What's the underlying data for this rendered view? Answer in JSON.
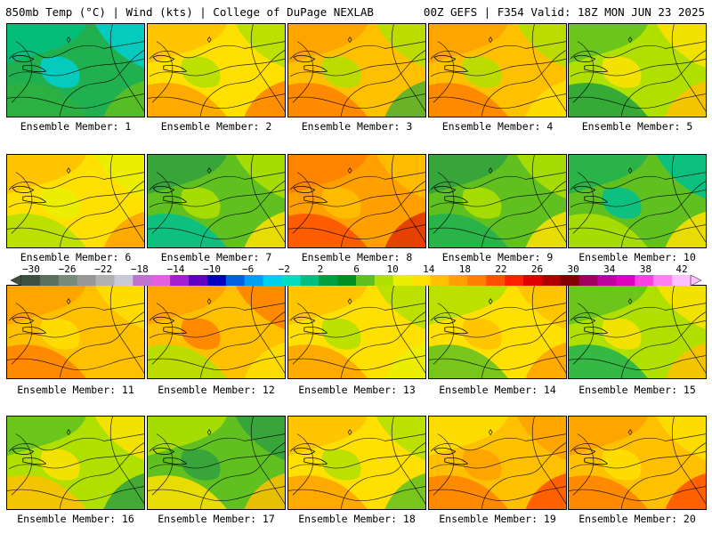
{
  "header": {
    "left_title": "850mb Temp (°C) | Wind (kts) | College of DuPage NEXLAB",
    "right_title": "00Z GEFS | F354 Valid: 18Z MON JUN 23 2025"
  },
  "colorbar": {
    "labels": [
      "−30",
      "−26",
      "−22",
      "−18",
      "−14",
      "−10",
      "−6",
      "−2",
      "2",
      "6",
      "10",
      "14",
      "18",
      "22",
      "26",
      "30",
      "34",
      "38",
      "42"
    ],
    "colors": [
      "#3f4f3f",
      "#5c6e5c",
      "#7a8a7a",
      "#969696",
      "#b0b0b0",
      "#c8c8d8",
      "#c070d0",
      "#e060e0",
      "#a020d0",
      "#6000c0",
      "#0000c0",
      "#0060e0",
      "#00a0f0",
      "#00d0f0",
      "#00e0c0",
      "#00c080",
      "#00a040",
      "#009020",
      "#60c020",
      "#b0e000",
      "#e8f000",
      "#ffe000",
      "#ffc000",
      "#ffa000",
      "#ff8000",
      "#ff5000",
      "#ff2000",
      "#e00000",
      "#b00000",
      "#800000",
      "#a00060",
      "#c000a0",
      "#e000c0",
      "#ff40e0",
      "#ff80f0",
      "#ffc0ff"
    ]
  },
  "members": [
    {
      "label": "Ensemble Member: 1",
      "palette": [
        "#20b050",
        "#00c080",
        "#00d0d0",
        "#30b040",
        "#60c020"
      ]
    },
    {
      "label": "Ensemble Member: 2",
      "palette": [
        "#ffe000",
        "#ffc000",
        "#b0e000",
        "#ffa000",
        "#ff8000"
      ]
    },
    {
      "label": "Ensemble Member: 3",
      "palette": [
        "#ffc000",
        "#ffa000",
        "#b0e000",
        "#ff8000",
        "#50b030"
      ]
    },
    {
      "label": "Ensemble Member: 4",
      "palette": [
        "#ffc000",
        "#ffa000",
        "#b0e000",
        "#ff8000",
        "#ffe000"
      ]
    },
    {
      "label": "Ensemble Member: 5",
      "palette": [
        "#b0e000",
        "#60c020",
        "#ffe000",
        "#20a040",
        "#ffc000"
      ]
    },
    {
      "label": "Ensemble Member: 6",
      "palette": [
        "#ffe000",
        "#ffc000",
        "#e8f000",
        "#b0e000",
        "#ffa000"
      ]
    },
    {
      "label": "Ensemble Member: 7",
      "palette": [
        "#60c020",
        "#30a040",
        "#b0e000",
        "#00c090",
        "#ffe000"
      ]
    },
    {
      "label": "Ensemble Member: 8",
      "palette": [
        "#ffa000",
        "#ff8000",
        "#ffc000",
        "#ff5000",
        "#e03000"
      ]
    },
    {
      "label": "Ensemble Member: 9",
      "palette": [
        "#60c020",
        "#30a040",
        "#b0e000",
        "#20b050",
        "#ffe000"
      ]
    },
    {
      "label": "Ensemble Member: 10",
      "palette": [
        "#60c020",
        "#20b050",
        "#00c090",
        "#b0e000",
        "#ffe000"
      ]
    },
    {
      "label": "Ensemble Member: 11",
      "palette": [
        "#ffc000",
        "#ffa000",
        "#ffe000",
        "#ff8000",
        "#ffc000"
      ]
    },
    {
      "label": "Ensemble Member: 12",
      "palette": [
        "#ffc000",
        "#ffa000",
        "#ff8000",
        "#b0e000",
        "#ffe000"
      ]
    },
    {
      "label": "Ensemble Member: 13",
      "palette": [
        "#ffe000",
        "#ffc000",
        "#b0e000",
        "#ffa000",
        "#e8f000"
      ]
    },
    {
      "label": "Ensemble Member: 14",
      "palette": [
        "#ffe000",
        "#b0e000",
        "#ffc000",
        "#60c020",
        "#ffa000"
      ]
    },
    {
      "label": "Ensemble Member: 15",
      "palette": [
        "#b0e000",
        "#60c020",
        "#ffe000",
        "#20b050",
        "#ffc000"
      ]
    },
    {
      "label": "Ensemble Member: 16",
      "palette": [
        "#b0e000",
        "#60c020",
        "#ffe000",
        "#ffc000",
        "#30a040"
      ]
    },
    {
      "label": "Ensemble Member: 17",
      "palette": [
        "#60c020",
        "#b0e000",
        "#30a040",
        "#ffe000",
        "#ffc000"
      ]
    },
    {
      "label": "Ensemble Member: 18",
      "palette": [
        "#ffe000",
        "#ffc000",
        "#b0e000",
        "#ffa000",
        "#60c020"
      ]
    },
    {
      "label": "Ensemble Member: 19",
      "palette": [
        "#ffc000",
        "#ffe000",
        "#ffa000",
        "#ff8000",
        "#ff5000"
      ]
    },
    {
      "label": "Ensemble Member: 20",
      "palette": [
        "#ffc000",
        "#ffa000",
        "#ffe000",
        "#ff8000",
        "#ff5000"
      ]
    }
  ]
}
